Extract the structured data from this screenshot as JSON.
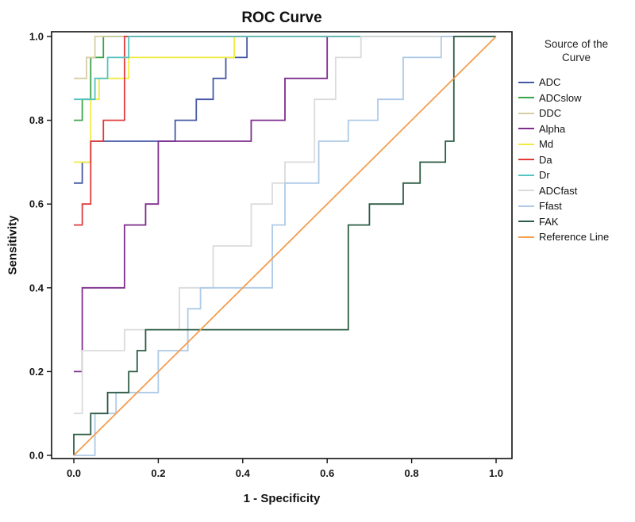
{
  "page": {
    "title": "ROC Curve"
  },
  "axes": {
    "x_label": "1 - Specificity",
    "y_label": "Sensitivity"
  },
  "legend": {
    "title": "Source of the Curve"
  },
  "chart_data": {
    "type": "line",
    "title": "ROC Curve",
    "xlabel": "1 - Specificity",
    "ylabel": "Sensitivity",
    "xlim": [
      0,
      1
    ],
    "ylim": [
      0,
      1
    ],
    "grid": false,
    "legend_position": "right",
    "legend_title": "Source of the Curve",
    "x_ticks": [
      0,
      0.2,
      0.4,
      0.6,
      0.8,
      1.0
    ],
    "y_ticks": [
      0,
      0.2,
      0.4,
      0.6,
      0.8,
      1.0
    ],
    "x_tick_labels": [
      "0.0",
      "0.2",
      "0.4",
      "0.6",
      "0.8",
      "1.0"
    ],
    "y_tick_labels": [
      "0.0",
      "0.2",
      "0.4",
      "0.6",
      "0.8",
      "1.0"
    ],
    "series": [
      {
        "name": "ADC",
        "color": "#4558A5",
        "points": [
          [
            0,
            0.65
          ],
          [
            0.02,
            0.65
          ],
          [
            0.02,
            0.7
          ],
          [
            0.04,
            0.7
          ],
          [
            0.04,
            0.75
          ],
          [
            0.24,
            0.75
          ],
          [
            0.24,
            0.8
          ],
          [
            0.29,
            0.8
          ],
          [
            0.29,
            0.85
          ],
          [
            0.33,
            0.85
          ],
          [
            0.33,
            0.9
          ],
          [
            0.36,
            0.9
          ],
          [
            0.36,
            0.95
          ],
          [
            0.41,
            0.95
          ],
          [
            0.41,
            1.0
          ],
          [
            1,
            1
          ]
        ]
      },
      {
        "name": "ADCslow",
        "color": "#3BA449",
        "points": [
          [
            0,
            0.8
          ],
          [
            0.02,
            0.8
          ],
          [
            0.02,
            0.85
          ],
          [
            0.04,
            0.85
          ],
          [
            0.04,
            0.95
          ],
          [
            0.07,
            0.95
          ],
          [
            0.07,
            1.0
          ],
          [
            1,
            1
          ]
        ]
      },
      {
        "name": "DDC",
        "color": "#D6CEA3",
        "points": [
          [
            0,
            0.9
          ],
          [
            0.03,
            0.9
          ],
          [
            0.03,
            0.95
          ],
          [
            0.05,
            0.95
          ],
          [
            0.05,
            1.0
          ],
          [
            1,
            1
          ]
        ]
      },
      {
        "name": "Alpha",
        "color": "#7D2D8D",
        "points": [
          [
            0,
            0.2
          ],
          [
            0.02,
            0.2
          ],
          [
            0.02,
            0.4
          ],
          [
            0.12,
            0.4
          ],
          [
            0.12,
            0.55
          ],
          [
            0.17,
            0.55
          ],
          [
            0.17,
            0.6
          ],
          [
            0.2,
            0.6
          ],
          [
            0.2,
            0.75
          ],
          [
            0.42,
            0.75
          ],
          [
            0.42,
            0.8
          ],
          [
            0.5,
            0.8
          ],
          [
            0.5,
            0.9
          ],
          [
            0.6,
            0.9
          ],
          [
            0.6,
            1.0
          ],
          [
            1,
            1
          ]
        ]
      },
      {
        "name": "Md",
        "color": "#F2EA43",
        "points": [
          [
            0,
            0.7
          ],
          [
            0.04,
            0.7
          ],
          [
            0.04,
            0.85
          ],
          [
            0.06,
            0.85
          ],
          [
            0.06,
            0.9
          ],
          [
            0.13,
            0.9
          ],
          [
            0.13,
            0.95
          ],
          [
            0.38,
            0.95
          ],
          [
            0.38,
            1.0
          ],
          [
            1,
            1
          ]
        ]
      },
      {
        "name": "Da",
        "color": "#E03B3B",
        "points": [
          [
            0,
            0.55
          ],
          [
            0.02,
            0.55
          ],
          [
            0.02,
            0.6
          ],
          [
            0.04,
            0.6
          ],
          [
            0.04,
            0.75
          ],
          [
            0.07,
            0.75
          ],
          [
            0.07,
            0.8
          ],
          [
            0.12,
            0.8
          ],
          [
            0.12,
            1.0
          ],
          [
            1,
            1
          ]
        ]
      },
      {
        "name": "Dr",
        "color": "#56C4C0",
        "points": [
          [
            0,
            0.85
          ],
          [
            0.05,
            0.85
          ],
          [
            0.05,
            0.9
          ],
          [
            0.08,
            0.9
          ],
          [
            0.08,
            0.95
          ],
          [
            0.13,
            0.95
          ],
          [
            0.13,
            1.0
          ],
          [
            1,
            1
          ]
        ]
      },
      {
        "name": "ADCfast",
        "color": "#DBDBDB",
        "points": [
          [
            0,
            0.1
          ],
          [
            0.02,
            0.1
          ],
          [
            0.02,
            0.25
          ],
          [
            0.12,
            0.25
          ],
          [
            0.12,
            0.3
          ],
          [
            0.25,
            0.3
          ],
          [
            0.25,
            0.4
          ],
          [
            0.33,
            0.4
          ],
          [
            0.33,
            0.5
          ],
          [
            0.42,
            0.5
          ],
          [
            0.42,
            0.6
          ],
          [
            0.47,
            0.6
          ],
          [
            0.47,
            0.65
          ],
          [
            0.5,
            0.65
          ],
          [
            0.5,
            0.7
          ],
          [
            0.57,
            0.7
          ],
          [
            0.57,
            0.85
          ],
          [
            0.62,
            0.85
          ],
          [
            0.62,
            0.95
          ],
          [
            0.68,
            0.95
          ],
          [
            0.68,
            1.0
          ],
          [
            1,
            1
          ]
        ]
      },
      {
        "name": "Ffast",
        "color": "#AECAE8",
        "points": [
          [
            0,
            0
          ],
          [
            0.05,
            0
          ],
          [
            0.05,
            0.1
          ],
          [
            0.1,
            0.1
          ],
          [
            0.1,
            0.15
          ],
          [
            0.2,
            0.15
          ],
          [
            0.2,
            0.25
          ],
          [
            0.27,
            0.25
          ],
          [
            0.27,
            0.35
          ],
          [
            0.3,
            0.35
          ],
          [
            0.3,
            0.4
          ],
          [
            0.47,
            0.4
          ],
          [
            0.47,
            0.55
          ],
          [
            0.5,
            0.55
          ],
          [
            0.5,
            0.65
          ],
          [
            0.58,
            0.65
          ],
          [
            0.58,
            0.75
          ],
          [
            0.65,
            0.75
          ],
          [
            0.65,
            0.8
          ],
          [
            0.72,
            0.8
          ],
          [
            0.72,
            0.85
          ],
          [
            0.78,
            0.85
          ],
          [
            0.78,
            0.95
          ],
          [
            0.87,
            0.95
          ],
          [
            0.87,
            1.0
          ],
          [
            1,
            1
          ]
        ]
      },
      {
        "name": "FAK",
        "color": "#2E5C45",
        "points": [
          [
            0,
            0
          ],
          [
            0,
            0.05
          ],
          [
            0.04,
            0.05
          ],
          [
            0.04,
            0.1
          ],
          [
            0.08,
            0.1
          ],
          [
            0.08,
            0.15
          ],
          [
            0.13,
            0.15
          ],
          [
            0.13,
            0.2
          ],
          [
            0.15,
            0.2
          ],
          [
            0.15,
            0.25
          ],
          [
            0.17,
            0.25
          ],
          [
            0.17,
            0.3
          ],
          [
            0.65,
            0.3
          ],
          [
            0.65,
            0.55
          ],
          [
            0.7,
            0.55
          ],
          [
            0.7,
            0.6
          ],
          [
            0.78,
            0.6
          ],
          [
            0.78,
            0.65
          ],
          [
            0.82,
            0.65
          ],
          [
            0.82,
            0.7
          ],
          [
            0.88,
            0.7
          ],
          [
            0.88,
            0.75
          ],
          [
            0.9,
            0.75
          ],
          [
            0.9,
            1.0
          ],
          [
            1,
            1
          ]
        ]
      },
      {
        "name": "Reference Line",
        "color": "#F59D4F",
        "points": [
          [
            0,
            0
          ],
          [
            1,
            1
          ]
        ]
      }
    ]
  }
}
